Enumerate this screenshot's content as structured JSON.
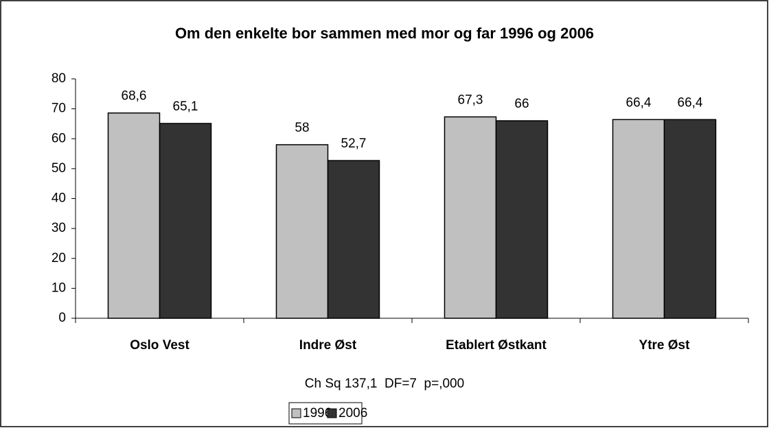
{
  "chart_data": {
    "type": "bar",
    "title": "Om den enkelte bor sammen med mor og far 1996 og 2006",
    "annotation": "Ch Sq 137,1  DF=7  p=,000",
    "categories": [
      "Oslo Vest",
      "Indre Øst",
      "Etablert Østkant",
      "Ytre Øst"
    ],
    "series": [
      {
        "name": "1996",
        "color": "#c0c0c0",
        "values": [
          68.6,
          58,
          67.3,
          66.4
        ],
        "value_labels": [
          "68,6",
          "58",
          "67,3",
          "66,4"
        ]
      },
      {
        "name": "2006",
        "color": "#333333",
        "values": [
          65.1,
          52.7,
          66,
          66.4
        ],
        "value_labels": [
          "65,1",
          "52,7",
          "66",
          "66,4"
        ]
      }
    ],
    "ylim": [
      0,
      80
    ],
    "yticks": [
      0,
      10,
      20,
      30,
      40,
      50,
      60,
      70,
      80
    ],
    "legend": "bottom"
  }
}
